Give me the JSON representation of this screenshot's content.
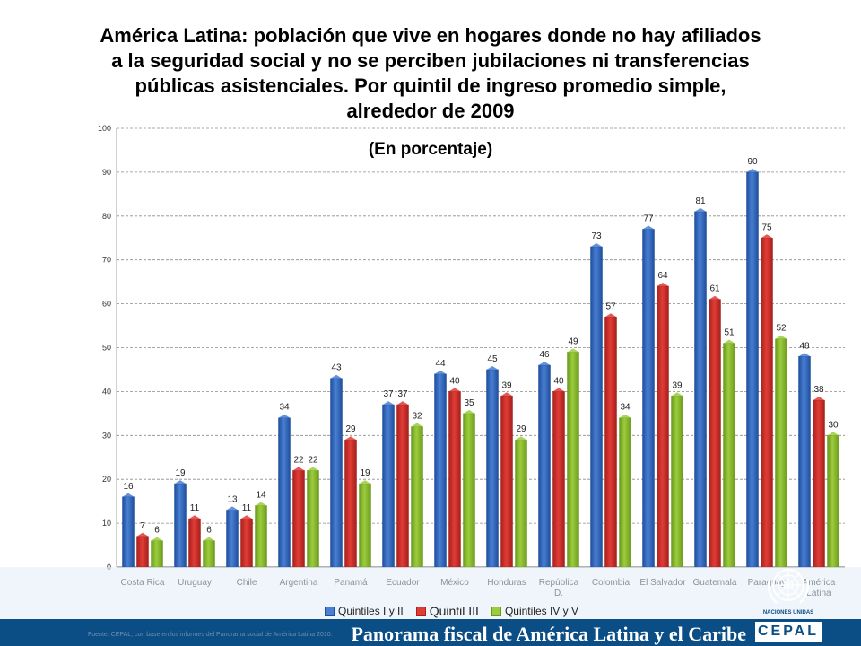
{
  "title": "América Latina: población que vive en hogares donde no hay afiliados a la seguridad social y no se perciben jubilaciones ni transferencias públicas asistenciales. Por quintil de ingreso promedio simple, alrededor de 2009",
  "subtitle": "(En porcentaje)",
  "footer": {
    "title": "Panorama fiscal de América Latina y el Caribe",
    "source": "Fuente: CEPAL, con base en los informes del Panorama social de América Latina 2010.",
    "un_label": "NACIONES UNIDAS",
    "cepal_logo": "CEPAL"
  },
  "colors": {
    "series": [
      "#4a7fd4",
      "#e03c36",
      "#9ccc3d"
    ],
    "series_dark": [
      "#1f4f9c",
      "#a8201c",
      "#6b9a1e"
    ],
    "footer_bar": "#0b4d85"
  },
  "chart_data": {
    "type": "bar",
    "categories": [
      "Costa Rica",
      "Uruguay",
      "Chile",
      "Argentina",
      "Panamá",
      "Ecuador",
      "México",
      "Honduras",
      "República D.",
      "Colombia",
      "El Salvador",
      "Guatemala",
      "Paraguay",
      "América Latina"
    ],
    "series": [
      {
        "name": "Quintiles I y II",
        "values": [
          16,
          19,
          13,
          34,
          43,
          37,
          44,
          45,
          46,
          73,
          77,
          81,
          90,
          48
        ]
      },
      {
        "name": "Quintil III",
        "values": [
          7,
          11,
          11,
          22,
          29,
          37,
          40,
          39,
          40,
          57,
          64,
          61,
          75,
          38
        ]
      },
      {
        "name": "Quintiles IV y V",
        "values": [
          6,
          6,
          14,
          22,
          19,
          32,
          35,
          29,
          49,
          34,
          39,
          51,
          52,
          30
        ]
      }
    ],
    "ylim": [
      0,
      100
    ],
    "yticks": [
      0,
      10,
      20,
      30,
      40,
      50,
      60,
      70,
      80,
      90,
      100
    ],
    "grid": true,
    "legend_position": "bottom",
    "data_labels": true
  }
}
